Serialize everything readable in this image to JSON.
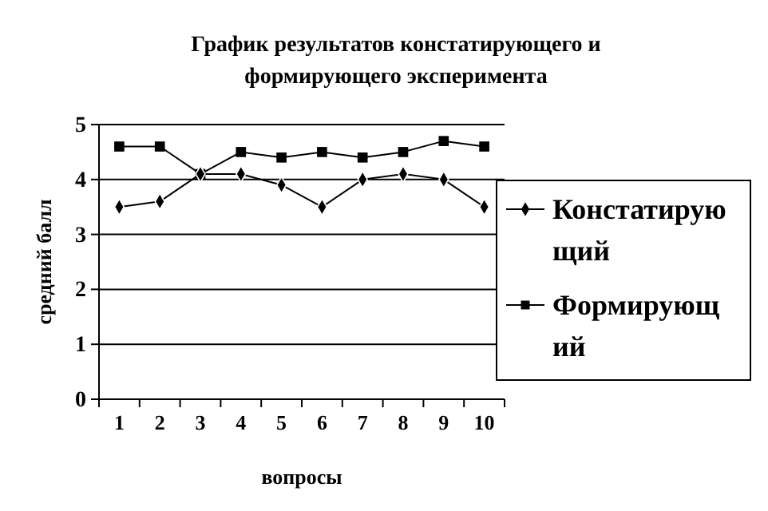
{
  "chart_data": {
    "type": "line",
    "title": "График результатов констатирующего и формирующего эксперимента",
    "xlabel": "вопросы",
    "ylabel": "средний балл",
    "categories": [
      "1",
      "2",
      "3",
      "4",
      "5",
      "6",
      "7",
      "8",
      "9",
      "10"
    ],
    "series": [
      {
        "name": "Констатирующий",
        "color": "#000000",
        "marker": "diamond",
        "values": [
          3.5,
          3.6,
          4.1,
          4.1,
          3.9,
          3.5,
          4.0,
          4.1,
          4.0,
          3.5
        ]
      },
      {
        "name": "Формирующий",
        "color": "#000000",
        "marker": "square",
        "values": [
          4.6,
          4.6,
          4.1,
          4.5,
          4.4,
          4.5,
          4.4,
          4.5,
          4.7,
          4.6
        ]
      }
    ],
    "ylim": [
      0,
      5
    ],
    "yticks": [
      0,
      1,
      2,
      3,
      4,
      5
    ],
    "grid": "y",
    "legend": "right"
  }
}
